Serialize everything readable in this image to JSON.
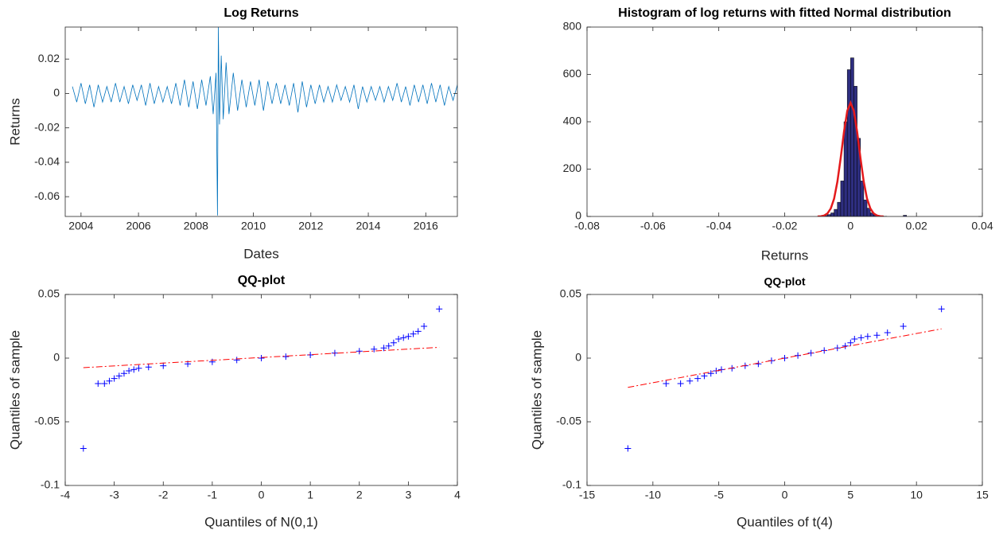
{
  "chart_data": [
    {
      "type": "line",
      "title": "Log Returns",
      "x_label": "Dates",
      "y_label": "Returns",
      "xlim": [
        2003.45,
        2017.1
      ],
      "xticks": [
        2004,
        2006,
        2008,
        2010,
        2012,
        2014,
        2016
      ],
      "ylim": [
        -0.0715,
        0.0386
      ],
      "yticks": [
        -0.06,
        -0.04,
        -0.02,
        0,
        0.02
      ],
      "series": [
        {
          "color": "#0072bd",
          "x": [
            2003.7,
            2003.85,
            2004.0,
            2004.15,
            2004.3,
            2004.45,
            2004.6,
            2004.75,
            2004.9,
            2005.05,
            2005.2,
            2005.35,
            2005.5,
            2005.65,
            2005.8,
            2005.95,
            2006.1,
            2006.25,
            2006.4,
            2006.55,
            2006.7,
            2006.85,
            2007.0,
            2007.15,
            2007.3,
            2007.45,
            2007.6,
            2007.75,
            2007.9,
            2008.05,
            2008.2,
            2008.35,
            2008.5,
            2008.6,
            2008.7,
            2008.75,
            2008.78,
            2008.82,
            2008.88,
            2008.95,
            2009.05,
            2009.15,
            2009.3,
            2009.45,
            2009.6,
            2009.75,
            2009.9,
            2010.05,
            2010.2,
            2010.35,
            2010.5,
            2010.65,
            2010.8,
            2010.95,
            2011.1,
            2011.25,
            2011.4,
            2011.55,
            2011.7,
            2011.85,
            2012.0,
            2012.15,
            2012.3,
            2012.45,
            2012.6,
            2012.75,
            2012.9,
            2013.05,
            2013.2,
            2013.35,
            2013.5,
            2013.65,
            2013.8,
            2013.95,
            2014.1,
            2014.25,
            2014.4,
            2014.55,
            2014.7,
            2014.85,
            2015.0,
            2015.15,
            2015.3,
            2015.45,
            2015.6,
            2015.75,
            2015.9,
            2016.05,
            2016.2,
            2016.35,
            2016.5,
            2016.65,
            2016.8,
            2016.95,
            2017.1,
            2017.25
          ],
          "values": [
            0.004,
            -0.005,
            0.006,
            -0.006,
            0.005,
            -0.008,
            0.005,
            -0.005,
            0.004,
            -0.005,
            0.006,
            -0.005,
            0.004,
            -0.006,
            0.005,
            -0.004,
            0.005,
            -0.007,
            0.006,
            -0.006,
            0.004,
            -0.005,
            0.004,
            -0.006,
            0.006,
            -0.007,
            0.008,
            -0.008,
            0.007,
            -0.009,
            0.008,
            -0.007,
            0.01,
            -0.012,
            0.012,
            -0.0709,
            0.0386,
            -0.018,
            0.022,
            -0.015,
            0.018,
            -0.012,
            0.012,
            -0.01,
            0.008,
            -0.008,
            0.007,
            -0.007,
            0.008,
            -0.01,
            0.007,
            -0.006,
            0.006,
            -0.006,
            0.005,
            -0.007,
            0.006,
            -0.011,
            0.007,
            -0.008,
            0.005,
            -0.006,
            0.005,
            -0.005,
            0.004,
            -0.005,
            0.005,
            -0.004,
            0.004,
            -0.005,
            0.005,
            -0.009,
            0.004,
            -0.005,
            0.004,
            -0.004,
            0.004,
            -0.005,
            0.004,
            -0.004,
            0.006,
            -0.005,
            0.004,
            -0.007,
            0.005,
            -0.005,
            0.005,
            -0.006,
            0.006,
            -0.005,
            0.005,
            -0.007,
            0.004,
            -0.004,
            0.005,
            -0.003
          ]
        }
      ]
    },
    {
      "type": "histogram",
      "title": "Histogram of log returns with fitted Normal distribution",
      "x_label": "Returns",
      "xlim": [
        -0.08,
        0.04
      ],
      "xticks": [
        -0.08,
        -0.06,
        -0.04,
        -0.02,
        0,
        0.02,
        0.04
      ],
      "ylim": [
        0,
        800
      ],
      "yticks": [
        0,
        200,
        400,
        600,
        800
      ],
      "color": "#2e2e80",
      "bins": [
        -0.012,
        -0.011,
        -0.01,
        -0.009,
        -0.008,
        -0.007,
        -0.006,
        -0.005,
        -0.004,
        -0.003,
        -0.002,
        -0.001,
        0,
        0.001,
        0.002,
        0.003,
        0.004,
        0.005,
        0.006,
        0.007,
        0.008,
        0.009,
        0.01,
        0.011,
        0.012,
        0.013,
        0.014,
        0.015,
        0.016,
        0.017,
        0.018
      ],
      "values": [
        0,
        0,
        1,
        2,
        4,
        8,
        15,
        30,
        60,
        150,
        400,
        620,
        670,
        550,
        330,
        150,
        70,
        35,
        15,
        8,
        4,
        2,
        1,
        0,
        0,
        0,
        0,
        0,
        5,
        0
      ],
      "curve": {
        "color": "#e41a1c",
        "x": [
          -0.01,
          -0.009,
          -0.008,
          -0.007,
          -0.006,
          -0.005,
          -0.004,
          -0.003,
          -0.002,
          -0.001,
          0,
          0.001,
          0.002,
          0.003,
          0.004,
          0.005,
          0.006,
          0.007,
          0.008,
          0.009,
          0.01
        ],
        "values": [
          0,
          1,
          4,
          13,
          34,
          75,
          147,
          247,
          357,
          446,
          480,
          446,
          357,
          247,
          147,
          75,
          34,
          13,
          4,
          1,
          0
        ]
      }
    },
    {
      "type": "scatter",
      "title": "QQ-plot",
      "x_label": "Quantiles of N(0,1)",
      "y_label": "Quantiles of sample",
      "xlim": [
        -4,
        4
      ],
      "xticks": [
        -4,
        -3,
        -2,
        -1,
        0,
        1,
        2,
        3,
        4
      ],
      "ylim": [
        -0.1,
        0.05
      ],
      "yticks": [
        -0.1,
        -0.05,
        0,
        0.05
      ],
      "color": "#0000ff",
      "x": [
        -3.63,
        -3.33,
        -3.2,
        -3.1,
        -3.0,
        -2.9,
        -2.8,
        -2.7,
        -2.6,
        -2.5,
        -2.3,
        -2.0,
        -1.5,
        -1.0,
        -0.5,
        0,
        0.5,
        1.0,
        1.5,
        2.0,
        2.3,
        2.5,
        2.6,
        2.7,
        2.8,
        2.9,
        3.0,
        3.1,
        3.2,
        3.32,
        3.63
      ],
      "values": [
        -0.0709,
        -0.02,
        -0.02,
        -0.018,
        -0.016,
        -0.014,
        -0.012,
        -0.01,
        -0.009,
        -0.008,
        -0.007,
        -0.006,
        -0.0045,
        -0.003,
        -0.0015,
        0,
        0.0012,
        0.0025,
        0.004,
        0.0055,
        0.007,
        0.008,
        0.0095,
        0.012,
        0.015,
        0.016,
        0.017,
        0.019,
        0.021,
        0.025,
        0.0386
      ],
      "reference_line": {
        "color": "#ff0000",
        "x": [
          -3.63,
          3.63
        ],
        "values": [
          -0.0075,
          0.0085
        ]
      }
    },
    {
      "type": "scatter",
      "title": "QQ-plot",
      "x_label": "Quantiles of t(4)",
      "y_label": "Quantiles of sample",
      "xlim": [
        -15,
        15
      ],
      "xticks": [
        -15,
        -10,
        -5,
        0,
        5,
        10,
        15
      ],
      "ylim": [
        -0.1,
        0.05
      ],
      "yticks": [
        -0.1,
        -0.05,
        0,
        0.05
      ],
      "color": "#0000ff",
      "x": [
        -11.9,
        -9.0,
        -7.9,
        -7.2,
        -6.6,
        -6.1,
        -5.6,
        -5.2,
        -4.8,
        -4.0,
        -3.0,
        -2.0,
        -1.0,
        0,
        1.0,
        2.0,
        3.0,
        4.0,
        4.6,
        5.0,
        5.3,
        5.8,
        6.3,
        7.0,
        7.8,
        9.0,
        11.9
      ],
      "values": [
        -0.0709,
        -0.02,
        -0.02,
        -0.018,
        -0.016,
        -0.014,
        -0.012,
        -0.01,
        -0.009,
        -0.008,
        -0.006,
        -0.0045,
        -0.002,
        0,
        0.002,
        0.004,
        0.006,
        0.008,
        0.0095,
        0.012,
        0.015,
        0.016,
        0.017,
        0.018,
        0.02,
        0.025,
        0.0386
      ],
      "reference_line": {
        "color": "#ff0000",
        "x": [
          -11.9,
          11.9
        ],
        "values": [
          -0.023,
          0.023
        ]
      }
    }
  ]
}
